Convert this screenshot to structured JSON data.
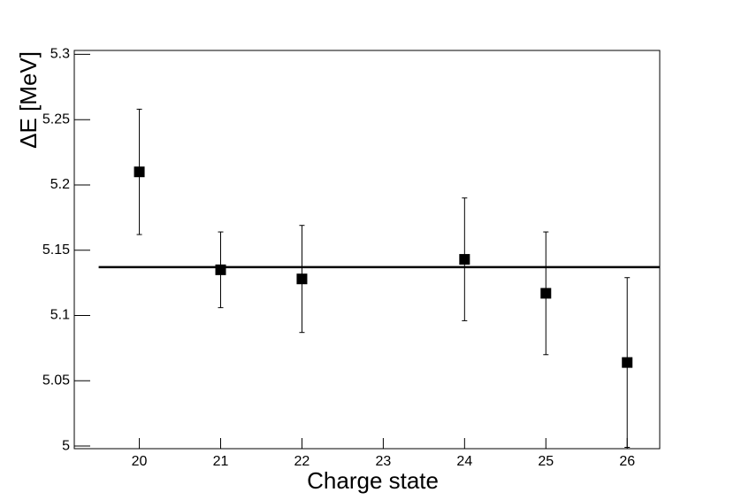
{
  "chart_data": {
    "type": "scatter",
    "x_label": "Charge state",
    "y_label": "ΔE [MeV]",
    "series": [
      {
        "color": "#000000",
        "x": [
          20,
          21,
          22,
          24,
          25,
          26
        ],
        "values": [
          5.21,
          5.135,
          5.128,
          5.143,
          5.117,
          5.064
        ],
        "errors": [
          0.048,
          0.029,
          0.041,
          0.047,
          0.047,
          0.065
        ]
      }
    ],
    "fit": {
      "y": 5.137,
      "x": [
        19.5,
        26.4
      ],
      "color": "#000000"
    },
    "xlim": [
      19.2,
      26.4
    ],
    "xticks": [
      20,
      21,
      22,
      23,
      24,
      25,
      26
    ],
    "ylim": [
      4.998,
      5.303
    ],
    "yticks": [
      5,
      5.05,
      5.1,
      5.15,
      5.2,
      5.25,
      5.3
    ]
  }
}
